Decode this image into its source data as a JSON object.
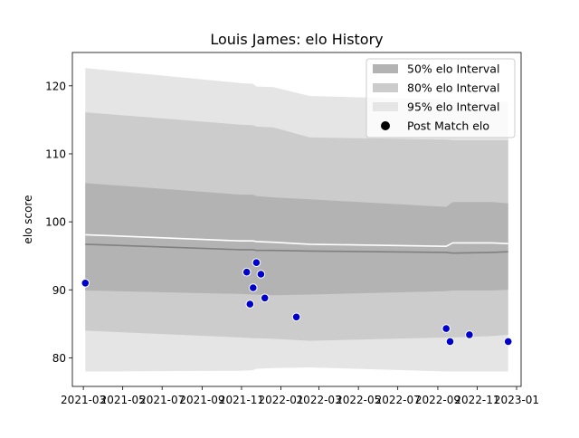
{
  "chart_data": {
    "type": "area",
    "title": "Louis James: elo History",
    "xlabel": "",
    "ylabel": "elo score",
    "xlim": [
      "2021-02-12",
      "2023-01-08"
    ],
    "ylim": [
      75.8,
      124.9
    ],
    "x_ticks": [
      "2021-03",
      "2021-05",
      "2021-07",
      "2021-09",
      "2021-11",
      "2022-01",
      "2022-03",
      "2022-05",
      "2022-07",
      "2022-09",
      "2022-11",
      "2023-01"
    ],
    "y_ticks": [
      80,
      90,
      100,
      110,
      120
    ],
    "grid": false,
    "legend_position": "top-right",
    "bands_x": [
      "2021-03-04",
      "2021-10-30",
      "2021-11-19",
      "2021-11-24",
      "2021-12-20",
      "2022-02-15",
      "2022-09-14",
      "2022-09-24",
      "2022-11-24",
      "2022-12-19"
    ],
    "series": [
      {
        "name": "95% elo Interval",
        "upper": [
          122.6,
          120.4,
          120.3,
          119.9,
          119.8,
          118.5,
          118.0,
          117.8,
          117.8,
          117.6
        ],
        "lower": [
          78.0,
          78.1,
          78.2,
          78.4,
          78.5,
          78.6,
          78.0,
          78.0,
          78.0,
          78.0
        ]
      },
      {
        "name": "80% elo Interval",
        "upper": [
          116.1,
          114.3,
          114.2,
          114.0,
          113.9,
          112.4,
          112.1,
          112.0,
          112.0,
          112.0
        ],
        "lower": [
          84.0,
          83.0,
          82.9,
          82.9,
          82.8,
          82.5,
          83.0,
          83.0,
          83.2,
          83.4
        ]
      },
      {
        "name": "50% elo Interval",
        "upper": [
          105.7,
          104.0,
          104.0,
          103.8,
          103.6,
          103.3,
          102.2,
          102.9,
          102.9,
          102.7
        ],
        "lower": [
          89.9,
          89.4,
          89.3,
          89.3,
          89.2,
          89.3,
          89.8,
          89.9,
          89.9,
          90.0
        ]
      }
    ],
    "mean_line": [
      96.7,
      95.9,
      95.9,
      95.8,
      95.8,
      95.7,
      95.5,
      95.4,
      95.5,
      95.6
    ],
    "upper_line": [
      98.1,
      97.2,
      97.2,
      97.1,
      97.0,
      96.7,
      96.4,
      96.9,
      96.9,
      96.8
    ],
    "points": {
      "name": "Post Match elo",
      "x": [
        "2021-03-04",
        "2021-11-09",
        "2021-11-14",
        "2021-11-19",
        "2021-11-24",
        "2021-12-01",
        "2021-12-07",
        "2022-01-25",
        "2022-09-14",
        "2022-09-20",
        "2022-10-20",
        "2022-12-19"
      ],
      "y": [
        91.0,
        92.6,
        87.9,
        90.3,
        94.0,
        92.3,
        88.8,
        86.0,
        84.3,
        82.4,
        83.4,
        82.4
      ]
    },
    "colors": {
      "band_50": "#b3b3b3",
      "band_80": "#cccccc",
      "band_95": "#e5e5e5",
      "mean_line": "#808080",
      "upper_line": "#ffffff",
      "point_fill": "#0000cc",
      "point_edge": "#ffffff"
    }
  },
  "legend": {
    "items": [
      {
        "label": "50% elo Interval",
        "kind": "patch",
        "color": "#b3b3b3"
      },
      {
        "label": "80% elo Interval",
        "kind": "patch",
        "color": "#cccccc"
      },
      {
        "label": "95% elo Interval",
        "kind": "patch",
        "color": "#e5e5e5"
      },
      {
        "label": "Post Match elo",
        "kind": "marker",
        "color": "#000000"
      }
    ]
  }
}
